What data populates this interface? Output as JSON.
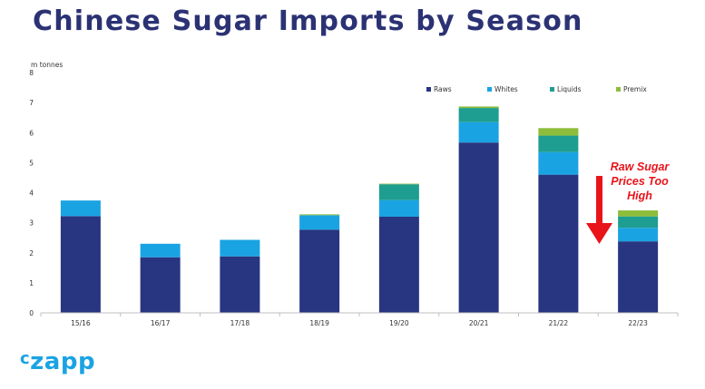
{
  "header": {
    "title": "Chinese Sugar Imports by Season"
  },
  "logo": {
    "prefix": "c",
    "rest": "zapp"
  },
  "annotation": {
    "line1": "Raw Sugar",
    "line2": "Prices Too",
    "line3": "High",
    "arrow_color": "#e8141a"
  },
  "chart_data": {
    "type": "bar",
    "stacked": true,
    "title": "",
    "xlabel": "",
    "ylabel": "m tonnes",
    "ylim": [
      0,
      8
    ],
    "yticks": [
      0,
      1,
      2,
      3,
      4,
      5,
      6,
      7,
      8
    ],
    "grid": false,
    "legend_position": "top-right",
    "categories": [
      "15/16",
      "16/17",
      "17/18",
      "18/19",
      "19/20",
      "20/21",
      "21/22",
      "22/23"
    ],
    "series": [
      {
        "name": "Raws",
        "color": "#283580",
        "values": [
          3.22,
          1.85,
          1.88,
          2.77,
          3.2,
          5.67,
          4.6,
          2.38
        ]
      },
      {
        "name": "Whites",
        "color": "#1aa3e3",
        "values": [
          0.52,
          0.45,
          0.55,
          0.48,
          0.55,
          0.68,
          0.75,
          0.45
        ]
      },
      {
        "name": "Liquids",
        "color": "#1e9e90",
        "values": [
          0.0,
          0.0,
          0.0,
          0.0,
          0.53,
          0.47,
          0.55,
          0.38
        ]
      },
      {
        "name": "Premix",
        "color": "#8dbd3a",
        "values": [
          0.0,
          0.0,
          0.0,
          0.03,
          0.02,
          0.05,
          0.25,
          0.2
        ]
      }
    ]
  }
}
